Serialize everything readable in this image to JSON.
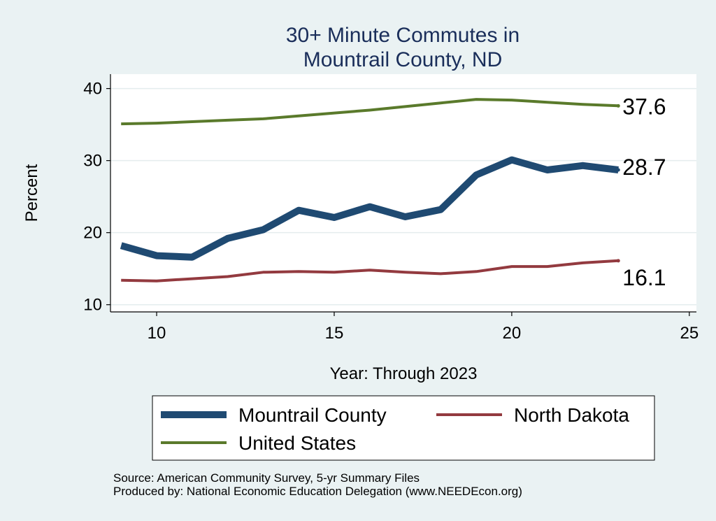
{
  "chart_data": {
    "type": "line",
    "title_lines": [
      "30+ Minute Commutes in",
      "Mountrail County, ND"
    ],
    "xlabel": "Year: Through 2023",
    "ylabel": "Percent",
    "xlim": [
      8.7,
      25.2
    ],
    "ylim": [
      9.0,
      42.0
    ],
    "xticks": [
      10,
      15,
      20,
      25
    ],
    "yticks": [
      10,
      20,
      30,
      40
    ],
    "grid": true,
    "x": [
      9,
      10,
      11,
      12,
      13,
      14,
      15,
      16,
      17,
      18,
      19,
      20,
      21,
      22,
      23
    ],
    "series": [
      {
        "name": "Mountrail County",
        "color": "#1f4a72",
        "values": [
          18.2,
          16.8,
          16.6,
          19.2,
          20.4,
          23.1,
          22.1,
          23.6,
          22.2,
          23.2,
          28.0,
          30.1,
          28.7,
          29.3,
          28.7
        ],
        "end_label": "28.7"
      },
      {
        "name": "North Dakota",
        "color": "#933a3f",
        "values": [
          13.4,
          13.3,
          13.6,
          13.9,
          14.5,
          14.6,
          14.5,
          14.8,
          14.5,
          14.3,
          14.6,
          15.3,
          15.3,
          15.8,
          16.1
        ],
        "end_label": "16.1"
      },
      {
        "name": "United States",
        "color": "#5a7a2b",
        "values": [
          35.1,
          35.2,
          35.4,
          35.6,
          35.8,
          36.2,
          36.6,
          37.0,
          37.5,
          38.0,
          38.5,
          38.4,
          38.1,
          37.8,
          37.6
        ],
        "end_label": "37.6"
      }
    ],
    "legend": [
      "Mountrail County",
      "North Dakota",
      "United States"
    ],
    "legend_placement": "bottom"
  },
  "notes": {
    "source": "Source: American Community Survey, 5-yr Summary Files",
    "produced_by": "Produced by: National Economic Education Delegation (www.NEEDEcon.org)"
  }
}
